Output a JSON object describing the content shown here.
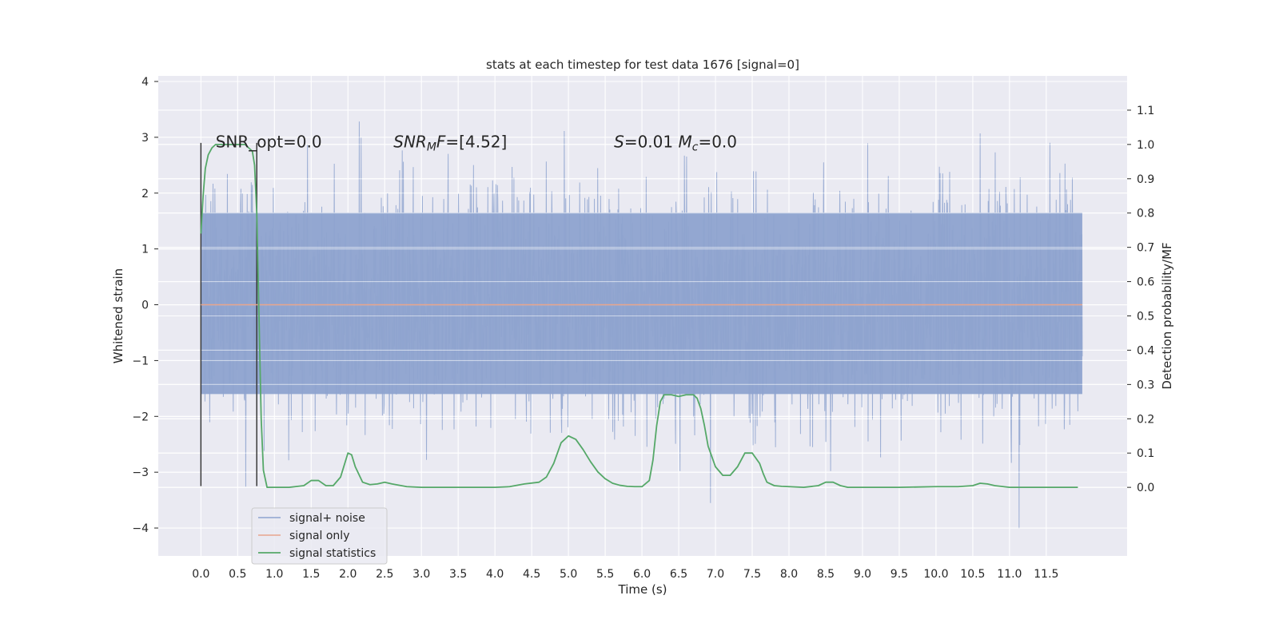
{
  "chart_data": {
    "type": "line",
    "title": "stats at each timestep for test data 1676 [signal=0]",
    "xlabel": "Time (s)",
    "ylabel": "Whitened strain",
    "ylabel_right": "Detection probability/MF",
    "xlim": [
      -0.58,
      12.6
    ],
    "ylim": [
      -4.5,
      4.1
    ],
    "ylim_right": [
      -0.2,
      1.2
    ],
    "x_ticks": [
      0.0,
      0.5,
      1.0,
      1.5,
      2.0,
      2.5,
      3.0,
      3.5,
      4.0,
      4.5,
      5.0,
      5.5,
      6.0,
      6.5,
      7.0,
      7.5,
      8.0,
      8.5,
      9.0,
      9.5,
      10.0,
      10.5,
      11.0,
      11.5
    ],
    "x_tick_labels": [
      "0.0",
      "0.5",
      "1.0",
      "1.5",
      "2.0",
      "2.5",
      "3.0",
      "3.5",
      "4.0",
      "4.5",
      "5.0",
      "5.5",
      "6.0",
      "6.5",
      "7.0",
      "7.5",
      "8.0",
      "8.5",
      "9.0",
      "9.5",
      "10.0",
      "10.5",
      "11.0",
      "11.5"
    ],
    "y_ticks": [
      -4,
      -3,
      -2,
      -1,
      0,
      1,
      2,
      3,
      4
    ],
    "y_tick_labels": [
      "−4",
      "−3",
      "−2",
      "−1",
      "0",
      "1",
      "2",
      "3",
      "4"
    ],
    "y_ticks_right": [
      0.0,
      0.1,
      0.2,
      0.3,
      0.4,
      0.5,
      0.6,
      0.7,
      0.8,
      0.9,
      1.0,
      1.1
    ],
    "y_tick_labels_right": [
      "0.0",
      "0.1",
      "0.2",
      "0.3",
      "0.4",
      "0.5",
      "0.6",
      "0.7",
      "0.8",
      "0.9",
      "1.0",
      "1.1"
    ],
    "grid": true,
    "legend_position": "lower-left",
    "annotations": [
      {
        "text": "SNR_opt=0.0"
      },
      {
        "text_parts": [
          {
            "t": "SNR",
            "italic": true
          },
          {
            "t": "M",
            "italic": true,
            "sub": true
          },
          {
            "t": "F",
            "italic": true
          },
          {
            "t": "=[4.52]",
            "italic": false
          }
        ]
      },
      {
        "text_parts": [
          {
            "t": "S",
            "italic": true
          },
          {
            "t": "=0.01   ",
            "italic": false
          },
          {
            "t": "M",
            "italic": true
          },
          {
            "t": "c",
            "italic": true,
            "sub": true
          },
          {
            "t": "=0.0",
            "italic": false
          }
        ]
      }
    ],
    "vertical_markers": {
      "x": [
        0.0,
        0.76
      ],
      "y_range": [
        -3.25,
        2.9
      ],
      "color": "#3a3a3a"
    },
    "series": [
      {
        "name": "signal+ noise",
        "axis": "left",
        "color": "#8ea3cf",
        "x_range": [
          0.0,
          11.99
        ],
        "typical_range": [
          -1.6,
          1.65
        ],
        "max": 3.7,
        "min": -4.1
      },
      {
        "name": "signal only",
        "axis": "left",
        "color": "#e8a58d",
        "x": [
          0.0,
          11.99
        ],
        "y": [
          0.0,
          0.0
        ]
      },
      {
        "name": "signal statistics",
        "axis": "right",
        "color": "#55a868",
        "x": [
          0.0,
          0.03,
          0.06,
          0.1,
          0.15,
          0.2,
          0.3,
          0.4,
          0.5,
          0.6,
          0.65,
          0.7,
          0.73,
          0.76,
          0.79,
          0.82,
          0.85,
          0.9,
          1.0,
          1.2,
          1.4,
          1.5,
          1.6,
          1.7,
          1.8,
          1.9,
          2.0,
          2.05,
          2.1,
          2.2,
          2.3,
          2.4,
          2.5,
          2.6,
          2.8,
          3.0,
          3.5,
          4.0,
          4.2,
          4.4,
          4.6,
          4.7,
          4.8,
          4.9,
          5.0,
          5.1,
          5.2,
          5.3,
          5.4,
          5.5,
          5.6,
          5.7,
          5.8,
          5.9,
          6.0,
          6.1,
          6.15,
          6.2,
          6.25,
          6.3,
          6.35,
          6.4,
          6.5,
          6.6,
          6.7,
          6.75,
          6.8,
          6.85,
          6.9,
          7.0,
          7.1,
          7.2,
          7.3,
          7.4,
          7.5,
          7.6,
          7.65,
          7.7,
          7.8,
          7.9,
          8.0,
          8.2,
          8.4,
          8.5,
          8.6,
          8.7,
          8.8,
          9.0,
          9.5,
          10.0,
          10.3,
          10.5,
          10.6,
          10.7,
          10.8,
          11.0,
          11.5,
          11.93
        ],
        "y": [
          0.74,
          0.85,
          0.93,
          0.97,
          0.99,
          1.0,
          1.0,
          1.0,
          1.0,
          1.0,
          0.99,
          0.98,
          0.94,
          0.8,
          0.5,
          0.2,
          0.05,
          0.0,
          0.0,
          0.0,
          0.005,
          0.02,
          0.02,
          0.005,
          0.005,
          0.03,
          0.1,
          0.095,
          0.06,
          0.015,
          0.008,
          0.01,
          0.015,
          0.01,
          0.002,
          0.0,
          0.0,
          0.0,
          0.002,
          0.01,
          0.015,
          0.03,
          0.07,
          0.13,
          0.15,
          0.14,
          0.11,
          0.075,
          0.045,
          0.025,
          0.012,
          0.006,
          0.003,
          0.002,
          0.002,
          0.02,
          0.08,
          0.18,
          0.25,
          0.27,
          0.27,
          0.27,
          0.265,
          0.27,
          0.27,
          0.26,
          0.23,
          0.18,
          0.12,
          0.06,
          0.035,
          0.035,
          0.06,
          0.1,
          0.1,
          0.07,
          0.04,
          0.015,
          0.005,
          0.003,
          0.002,
          0.0,
          0.005,
          0.015,
          0.015,
          0.005,
          0.0,
          0.0,
          0.0,
          0.002,
          0.002,
          0.005,
          0.012,
          0.01,
          0.005,
          0.0,
          0.0,
          0.0
        ]
      }
    ]
  }
}
